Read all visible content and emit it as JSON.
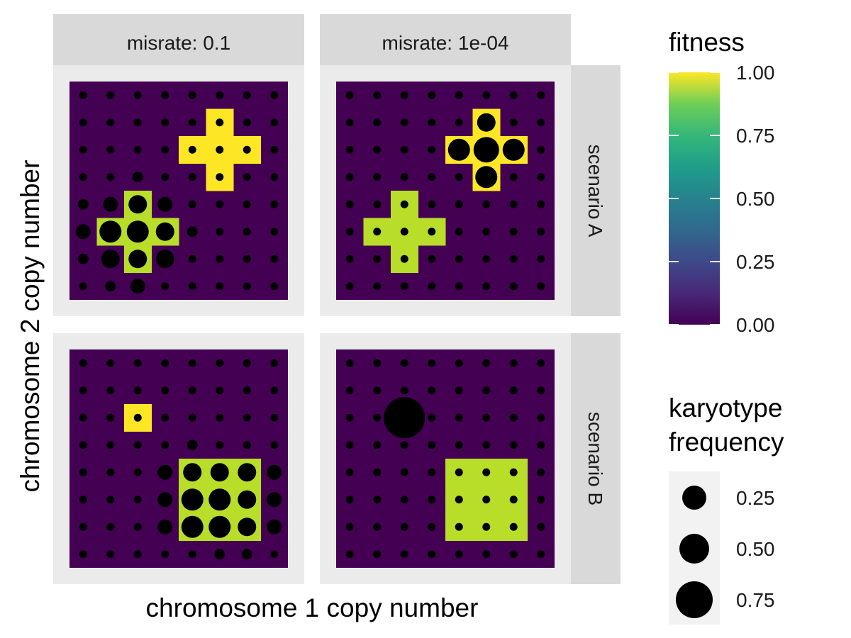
{
  "chart_data": {
    "type": "heatmap",
    "facet_cols": [
      "misrate: 0.1",
      "misrate: 1e-04"
    ],
    "facet_rows": [
      "scenario A",
      "scenario B"
    ],
    "xlabel": "chromosome 1 copy number",
    "ylabel": "chromosome 2 copy number",
    "grid_size": 8,
    "fitness_legend": {
      "title": "fitness",
      "ticks": [
        "1.00",
        "0.75",
        "0.50",
        "0.25",
        "0.00"
      ],
      "range": [
        0,
        1
      ],
      "colormap": "viridis",
      "colors": [
        "#fde725",
        "#5ec962",
        "#21918c",
        "#3b528b",
        "#440154"
      ]
    },
    "size_legend": {
      "title": [
        "karyotype",
        "frequency"
      ],
      "labels": [
        "0.25",
        "0.50",
        "0.75"
      ],
      "values": [
        0.25,
        0.5,
        0.75
      ]
    },
    "dot_color": "#000000",
    "panels": [
      {
        "col": 0,
        "row": 0,
        "fitness_cells": [
          {
            "x": 6,
            "y": 7,
            "f": 1.0
          },
          {
            "x": 5,
            "y": 6,
            "f": 1.0
          },
          {
            "x": 6,
            "y": 6,
            "f": 1.0
          },
          {
            "x": 7,
            "y": 6,
            "f": 1.0
          },
          {
            "x": 6,
            "y": 5,
            "f": 1.0
          },
          {
            "x": 3,
            "y": 4,
            "f": 0.85
          },
          {
            "x": 2,
            "y": 3,
            "f": 0.85
          },
          {
            "x": 3,
            "y": 3,
            "f": 0.85
          },
          {
            "x": 4,
            "y": 3,
            "f": 0.85
          },
          {
            "x": 3,
            "y": 2,
            "f": 0.85
          }
        ],
        "dot_sizes": [
          {
            "x": 1,
            "y": 4,
            "s": 2
          },
          {
            "x": 2,
            "y": 4,
            "s": 3
          },
          {
            "x": 3,
            "y": 4,
            "s": 4
          },
          {
            "x": 4,
            "y": 4,
            "s": 3
          },
          {
            "x": 1,
            "y": 3,
            "s": 3
          },
          {
            "x": 2,
            "y": 3,
            "s": 5
          },
          {
            "x": 3,
            "y": 3,
            "s": 5
          },
          {
            "x": 4,
            "y": 3,
            "s": 4
          },
          {
            "x": 5,
            "y": 3,
            "s": 2
          },
          {
            "x": 1,
            "y": 2,
            "s": 2
          },
          {
            "x": 2,
            "y": 2,
            "s": 4
          },
          {
            "x": 3,
            "y": 2,
            "s": 4
          },
          {
            "x": 4,
            "y": 2,
            "s": 4
          },
          {
            "x": 2,
            "y": 1,
            "s": 2
          },
          {
            "x": 3,
            "y": 1,
            "s": 3
          },
          {
            "x": 3,
            "y": 5,
            "s": 2
          },
          {
            "x": 1,
            "y": 5,
            "s": 1
          }
        ]
      },
      {
        "col": 1,
        "row": 0,
        "fitness_cells": [
          {
            "x": 6,
            "y": 7,
            "f": 1.0
          },
          {
            "x": 5,
            "y": 6,
            "f": 1.0
          },
          {
            "x": 6,
            "y": 6,
            "f": 1.0
          },
          {
            "x": 7,
            "y": 6,
            "f": 1.0
          },
          {
            "x": 6,
            "y": 5,
            "f": 1.0
          },
          {
            "x": 3,
            "y": 4,
            "f": 0.85
          },
          {
            "x": 2,
            "y": 3,
            "f": 0.85
          },
          {
            "x": 3,
            "y": 3,
            "f": 0.85
          },
          {
            "x": 4,
            "y": 3,
            "f": 0.85
          },
          {
            "x": 3,
            "y": 2,
            "f": 0.85
          }
        ],
        "dot_sizes": [
          {
            "x": 6,
            "y": 7,
            "s": 4
          },
          {
            "x": 5,
            "y": 6,
            "s": 5
          },
          {
            "x": 6,
            "y": 6,
            "s": 6
          },
          {
            "x": 7,
            "y": 6,
            "s": 5
          },
          {
            "x": 6,
            "y": 5,
            "s": 5
          }
        ]
      },
      {
        "col": 0,
        "row": 1,
        "fitness_cells": [
          {
            "x": 3,
            "y": 6,
            "f": 1.0
          },
          {
            "x": 5,
            "y": 4,
            "f": 0.85
          },
          {
            "x": 6,
            "y": 4,
            "f": 0.85
          },
          {
            "x": 7,
            "y": 4,
            "f": 0.85
          },
          {
            "x": 5,
            "y": 3,
            "f": 0.85
          },
          {
            "x": 6,
            "y": 3,
            "f": 0.85
          },
          {
            "x": 7,
            "y": 3,
            "f": 0.85
          },
          {
            "x": 5,
            "y": 2,
            "f": 0.85
          },
          {
            "x": 6,
            "y": 2,
            "f": 0.85
          },
          {
            "x": 7,
            "y": 2,
            "f": 0.85
          }
        ],
        "dot_sizes": [
          {
            "x": 5,
            "y": 4,
            "s": 4
          },
          {
            "x": 6,
            "y": 4,
            "s": 4
          },
          {
            "x": 7,
            "y": 4,
            "s": 4
          },
          {
            "x": 8,
            "y": 4,
            "s": 3
          },
          {
            "x": 4,
            "y": 4,
            "s": 3
          },
          {
            "x": 5,
            "y": 3,
            "s": 5
          },
          {
            "x": 6,
            "y": 3,
            "s": 5
          },
          {
            "x": 7,
            "y": 3,
            "s": 4
          },
          {
            "x": 8,
            "y": 3,
            "s": 3
          },
          {
            "x": 4,
            "y": 3,
            "s": 3
          },
          {
            "x": 5,
            "y": 2,
            "s": 5
          },
          {
            "x": 6,
            "y": 2,
            "s": 5
          },
          {
            "x": 7,
            "y": 2,
            "s": 4
          },
          {
            "x": 8,
            "y": 2,
            "s": 3
          },
          {
            "x": 4,
            "y": 2,
            "s": 3
          },
          {
            "x": 5,
            "y": 5,
            "s": 2
          },
          {
            "x": 6,
            "y": 1,
            "s": 2
          },
          {
            "x": 7,
            "y": 1,
            "s": 2
          }
        ]
      },
      {
        "col": 1,
        "row": 1,
        "fitness_cells": [
          {
            "x": 5,
            "y": 4,
            "f": 0.85
          },
          {
            "x": 6,
            "y": 4,
            "f": 0.85
          },
          {
            "x": 7,
            "y": 4,
            "f": 0.85
          },
          {
            "x": 5,
            "y": 3,
            "f": 0.85
          },
          {
            "x": 6,
            "y": 3,
            "f": 0.85
          },
          {
            "x": 7,
            "y": 3,
            "f": 0.85
          },
          {
            "x": 5,
            "y": 2,
            "f": 0.85
          },
          {
            "x": 6,
            "y": 2,
            "f": 0.85
          },
          {
            "x": 7,
            "y": 2,
            "f": 0.85
          }
        ],
        "dot_sizes": [
          {
            "x": 3,
            "y": 6,
            "s": 7
          }
        ]
      }
    ]
  }
}
